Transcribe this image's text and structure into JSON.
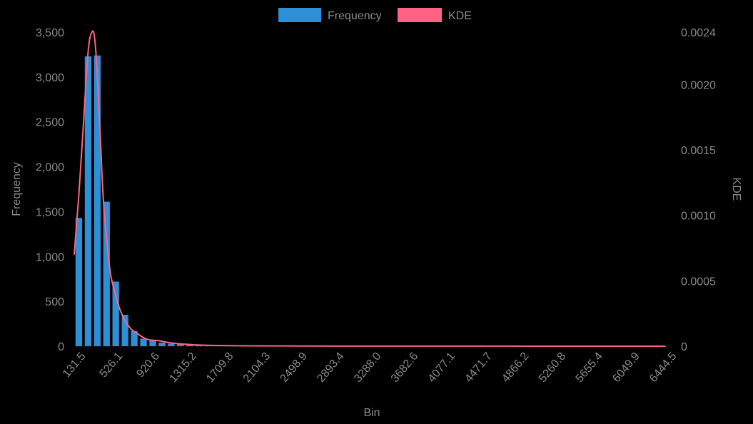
{
  "chart_data": {
    "type": "bar",
    "title": "",
    "xlabel": "Bin",
    "ylabel": "Frequency",
    "y2label": "KDE",
    "ylim": [
      0,
      3500
    ],
    "y2lim": [
      0,
      0.0024
    ],
    "yticks": [
      "0",
      "500",
      "1,000",
      "1,500",
      "2,000",
      "2,500",
      "3,000",
      "3,500"
    ],
    "y2ticks": [
      "0",
      "0.0005",
      "0.0010",
      "0.0015",
      "0.0020",
      "0.0024"
    ],
    "xticks": [
      "131.5",
      "526.1",
      "920.6",
      "1315.2",
      "1709.8",
      "2104.3",
      "2498.9",
      "2893.4",
      "3288.0",
      "3682.6",
      "4077.1",
      "4471.7",
      "4866.2",
      "5260.8",
      "5655.4",
      "6049.9",
      "6444.5"
    ],
    "bin_start": 131.5,
    "bin_width": 98.6,
    "bin_count": 64,
    "series": [
      {
        "name": "Frequency",
        "color": "#2d8fd5",
        "values": [
          1430,
          3230,
          3240,
          1610,
          720,
          350,
          170,
          85,
          60,
          40,
          28,
          20,
          14,
          10,
          8,
          6,
          5,
          4,
          4,
          3,
          3,
          2,
          2,
          2,
          1,
          1,
          1,
          1,
          1,
          1,
          1,
          1,
          0,
          0,
          0,
          0,
          0,
          0,
          0,
          0,
          0,
          0,
          0,
          0,
          0,
          0,
          0,
          0,
          0,
          0,
          0,
          0,
          0,
          0,
          0,
          0,
          0,
          0,
          0,
          0,
          0,
          0,
          0,
          0
        ]
      },
      {
        "name": "KDE",
        "color": "#ff6384",
        "x": [
          131.5,
          180,
          230,
          280,
          320,
          350,
          380,
          410,
          440,
          480,
          520,
          570,
          620,
          680,
          740,
          800,
          860,
          920,
          980,
          1050,
          1120,
          1200,
          1300,
          1400,
          1500,
          1600,
          1700,
          1800,
          2000,
          2300,
          2600,
          3000,
          3500,
          4000,
          4500,
          5000,
          5500,
          6000,
          6444.5
        ],
        "values": [
          0.0007,
          0.00115,
          0.0017,
          0.00225,
          0.0024,
          0.00235,
          0.00205,
          0.0016,
          0.00115,
          0.0008,
          0.00055,
          0.0004,
          0.00028,
          0.00019,
          0.00013,
          0.0001,
          7e-05,
          5e-05,
          4.5e-05,
          4e-05,
          3e-05,
          2.2e-05,
          1.6e-05,
          1.1e-05,
          8e-06,
          6e-06,
          5e-06,
          4e-06,
          3e-06,
          2e-06,
          1.5e-06,
          1e-06,
          8e-07,
          5e-07,
          4e-07,
          3e-07,
          2e-07,
          1e-07,
          0.0
        ]
      }
    ],
    "legend": {
      "position": "top-center",
      "items": [
        "Frequency",
        "KDE"
      ]
    }
  }
}
